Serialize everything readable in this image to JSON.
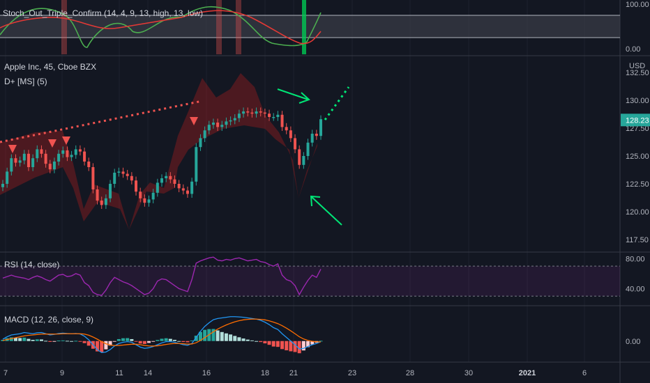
{
  "panes": {
    "stoch": {
      "label": "Stoch_Out_Triple_Confirm (14, 4, 9, 13, high, 13, low)",
      "ticks": [
        "100.00",
        "0.00"
      ]
    },
    "main": {
      "symbol_label": "Apple Inc, 45, Cboe BZX",
      "indicator_label": "D+ [MS] (5)",
      "currency": "USD",
      "ticks": [
        "132.50",
        "130.00",
        "127.50",
        "125.00",
        "122.50",
        "120.00",
        "117.50"
      ],
      "last_price": "128.23"
    },
    "rsi": {
      "label": "RSI (14, close)",
      "ticks": [
        "80.00",
        "40.00"
      ]
    },
    "macd": {
      "label": "MACD (12, 26, close, 9)",
      "ticks": [
        "0.00"
      ]
    }
  },
  "x_axis": {
    "ticks": [
      "7",
      "9",
      "11",
      "14",
      "16",
      "18",
      "21",
      "23",
      "28",
      "30",
      "2021",
      "6"
    ]
  },
  "colors": {
    "background": "#131722",
    "up": "#26a69a",
    "down": "#ef5350",
    "annotation": "#00e676",
    "rsi": "#9c27b0",
    "price_tag": "#26a69a"
  },
  "chart_data": [
    {
      "type": "candlestick",
      "title": "Apple Inc, 45, Cboe BZX",
      "ylim": [
        116.5,
        133.5
      ],
      "ylabel": "USD",
      "closes": [
        122.5,
        123.6,
        124.8,
        124.4,
        124.6,
        125.2,
        124.0,
        124.8,
        125.6,
        125.2,
        124.3,
        123.8,
        124.5,
        125.2,
        125.5,
        124.9,
        125.1,
        125.6,
        125.4,
        124.5,
        124.0,
        122.0,
        121.0,
        120.6,
        121.2,
        122.5,
        123.5,
        123.6,
        123.4,
        123.2,
        122.8,
        121.8,
        121.2,
        120.8,
        121.1,
        121.7,
        122.6,
        123.0,
        123.2,
        122.9,
        122.5,
        122.1,
        121.9,
        121.6,
        122.7,
        125.8,
        126.6,
        127.3,
        127.8,
        128.0,
        127.6,
        127.8,
        128.1,
        128.2,
        128.4,
        128.8,
        129.0,
        128.9,
        128.8,
        129.0,
        128.9,
        128.8,
        128.5,
        128.5,
        128.7,
        127.6,
        127.3,
        126.6,
        125.6,
        124.2,
        125.0,
        126.2,
        127.0,
        126.8,
        128.3
      ]
    },
    {
      "type": "line",
      "title": "RSI (14, close)",
      "ylim": [
        20,
        85
      ],
      "values": [
        54,
        56,
        58,
        56,
        55,
        54,
        52,
        55,
        57,
        55,
        52,
        50,
        54,
        58,
        59,
        56,
        57,
        60,
        58,
        48,
        44,
        35,
        32,
        31,
        38,
        48,
        55,
        52,
        49,
        47,
        44,
        40,
        36,
        32,
        34,
        40,
        50,
        53,
        52,
        48,
        44,
        40,
        38,
        36,
        52,
        74,
        77,
        79,
        81,
        82,
        78,
        77,
        79,
        78,
        80,
        81,
        79,
        77,
        78,
        79,
        76,
        75,
        72,
        70,
        73,
        58,
        52,
        50,
        44,
        32,
        42,
        51,
        58,
        55,
        66
      ]
    },
    {
      "type": "line",
      "title": "MACD (12, 26, close, 9)",
      "ylim": [
        -1.5,
        2.5
      ],
      "macd": [
        0.15,
        0.35,
        0.5,
        0.55,
        0.6,
        0.7,
        0.65,
        0.6,
        0.68,
        0.7,
        0.6,
        0.5,
        0.55,
        0.62,
        0.65,
        0.62,
        0.6,
        0.62,
        0.58,
        0.4,
        0.1,
        -0.3,
        -0.7,
        -0.95,
        -0.9,
        -0.7,
        -0.4,
        -0.2,
        -0.1,
        -0.05,
        -0.1,
        -0.3,
        -0.5,
        -0.6,
        -0.55,
        -0.45,
        -0.3,
        -0.15,
        -0.05,
        -0.05,
        -0.1,
        -0.2,
        -0.3,
        -0.35,
        -0.2,
        0.3,
        0.8,
        1.2,
        1.5,
        1.75,
        1.85,
        1.9,
        1.95,
        2.0,
        2.0,
        1.98,
        1.95,
        1.9,
        1.85,
        1.8,
        1.7,
        1.55,
        1.35,
        1.1,
        0.95,
        0.6,
        0.3,
        0.0,
        -0.3,
        -0.65,
        -0.6,
        -0.45,
        -0.3,
        -0.2,
        -0.05
      ],
      "signal": [
        0.05,
        0.12,
        0.2,
        0.28,
        0.35,
        0.42,
        0.47,
        0.5,
        0.54,
        0.57,
        0.58,
        0.57,
        0.57,
        0.58,
        0.6,
        0.6,
        0.6,
        0.6,
        0.6,
        0.57,
        0.48,
        0.33,
        0.15,
        -0.05,
        -0.22,
        -0.33,
        -0.37,
        -0.36,
        -0.33,
        -0.29,
        -0.26,
        -0.26,
        -0.3,
        -0.36,
        -0.4,
        -0.41,
        -0.39,
        -0.34,
        -0.28,
        -0.23,
        -0.2,
        -0.2,
        -0.22,
        -0.25,
        -0.24,
        -0.14,
        0.05,
        0.28,
        0.52,
        0.76,
        0.98,
        1.16,
        1.32,
        1.46,
        1.58,
        1.67,
        1.74,
        1.78,
        1.8,
        1.8,
        1.78,
        1.74,
        1.66,
        1.55,
        1.43,
        1.26,
        1.06,
        0.84,
        0.6,
        0.35,
        0.17,
        0.05,
        -0.02,
        -0.06,
        -0.07
      ]
    }
  ]
}
